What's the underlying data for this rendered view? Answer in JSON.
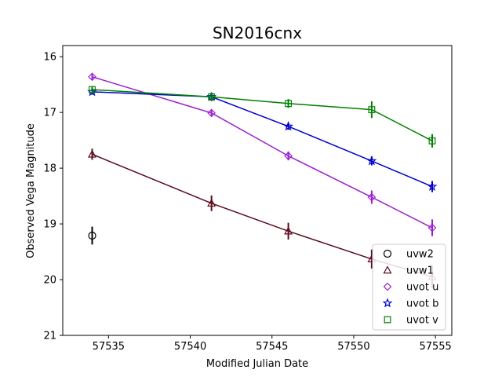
{
  "chart_data": {
    "type": "scatter",
    "title": "SN2016cnx",
    "xlabel": "Modified Julian Date",
    "ylabel": "Observed Vega Magnitude",
    "xlim": [
      57532.2,
      57556.0
    ],
    "ylim": [
      21,
      15.8
    ],
    "y_inverted": true,
    "xticks": [
      57535,
      57540,
      57545,
      57550,
      57555
    ],
    "yticks": [
      16,
      17,
      18,
      19,
      20,
      21
    ],
    "grid": false,
    "legend_position": "lower-right",
    "series": [
      {
        "name": "uvw2",
        "color": "#000000",
        "marker": "circle",
        "connected": false,
        "points": [
          {
            "x": 57534.0,
            "y": 19.21,
            "err": 0.16
          }
        ]
      },
      {
        "name": "uvw1",
        "color": "#5c0a1e",
        "marker": "triangle",
        "connected": true,
        "points": [
          {
            "x": 57534.0,
            "y": 17.75,
            "err": 0.1
          },
          {
            "x": 57541.3,
            "y": 18.63,
            "err": 0.14
          },
          {
            "x": 57546.0,
            "y": 19.13,
            "err": 0.15
          },
          {
            "x": 57551.1,
            "y": 19.63,
            "err": 0.17
          },
          {
            "x": 57554.8,
            "y": 19.95,
            "err": 0.2
          }
        ]
      },
      {
        "name": "uvot u",
        "color": "#9b1fd0",
        "marker": "diamond",
        "connected": true,
        "points": [
          {
            "x": 57534.0,
            "y": 16.36,
            "err": 0.05
          },
          {
            "x": 57541.3,
            "y": 17.01,
            "err": 0.06
          },
          {
            "x": 57546.0,
            "y": 17.78,
            "err": 0.08
          },
          {
            "x": 57551.1,
            "y": 18.52,
            "err": 0.12
          },
          {
            "x": 57554.8,
            "y": 19.07,
            "err": 0.15
          }
        ]
      },
      {
        "name": "uvot b",
        "color": "#0000cc",
        "marker": "star",
        "connected": true,
        "points": [
          {
            "x": 57534.0,
            "y": 16.63,
            "err": 0.05
          },
          {
            "x": 57541.3,
            "y": 16.72,
            "err": 0.05
          },
          {
            "x": 57546.0,
            "y": 17.25,
            "err": 0.06
          },
          {
            "x": 57551.1,
            "y": 17.87,
            "err": 0.08
          },
          {
            "x": 57554.8,
            "y": 18.33,
            "err": 0.1
          }
        ]
      },
      {
        "name": "uvot v",
        "color": "#008000",
        "marker": "square",
        "connected": true,
        "points": [
          {
            "x": 57534.0,
            "y": 16.59,
            "err": 0.06
          },
          {
            "x": 57541.3,
            "y": 16.72,
            "err": 0.08
          },
          {
            "x": 57546.0,
            "y": 16.84,
            "err": 0.08
          },
          {
            "x": 57551.1,
            "y": 16.95,
            "err": 0.15
          },
          {
            "x": 57554.8,
            "y": 17.51,
            "err": 0.12
          }
        ]
      }
    ]
  }
}
